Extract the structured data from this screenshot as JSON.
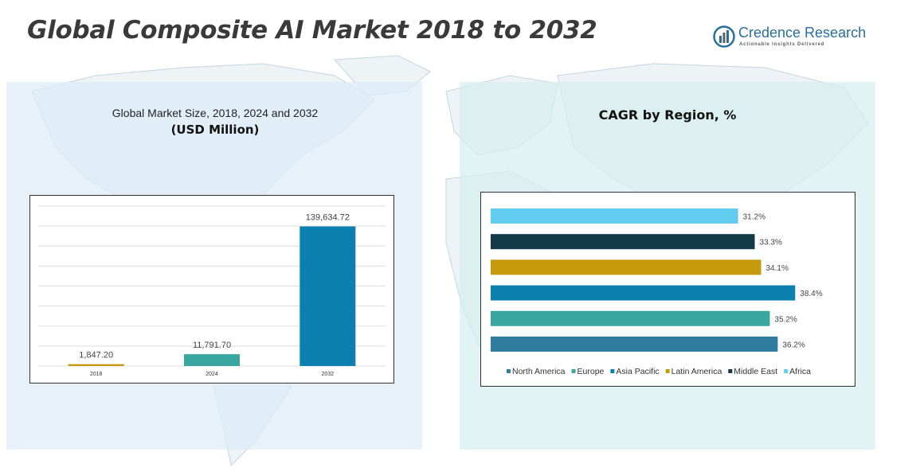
{
  "header": {
    "title": "Global Composite AI Market 2018 to 2032"
  },
  "brand": {
    "name": "Credence Research",
    "tagline": "Actionable Insights Delivered"
  },
  "colors": {
    "north_america": "#2e7d9e",
    "europe": "#3aa6a0",
    "asia_pacific": "#0a7fb0",
    "latin_america": "#c49a0a",
    "middle_east": "#143a4a",
    "africa": "#62cdf1"
  },
  "chart_data": [
    {
      "type": "bar",
      "subtitle": "Global Market Size, 2018, 2024 and 2032",
      "unit": "(USD Million)",
      "categories": [
        "2018",
        "2024",
        "2032"
      ],
      "values": [
        1847.2,
        11791.7,
        139634.72
      ],
      "value_labels": [
        "1,847.20",
        "11,791.70",
        "139,634.72"
      ],
      "colors": [
        "#c49a0a",
        "#3aa6a0",
        "#0a7fb0"
      ],
      "ylim": [
        0,
        160000
      ],
      "grid": true,
      "legend": "none"
    },
    {
      "type": "bar",
      "orientation": "horizontal",
      "title": "CAGR by Region, %",
      "categories": [
        "Africa",
        "Middle East",
        "Latin America",
        "Asia Pacific",
        "Europe",
        "North America"
      ],
      "values": [
        31.2,
        33.3,
        34.1,
        38.4,
        35.2,
        36.2
      ],
      "value_labels": [
        "31.2%",
        "33.3%",
        "34.1%",
        "38.4%",
        "35.2%",
        "36.2%"
      ],
      "colors": [
        "#62cdf1",
        "#143a4a",
        "#c49a0a",
        "#0a7fb0",
        "#3aa6a0",
        "#2e7d9e"
      ],
      "xlim": [
        0,
        45
      ],
      "grid": false,
      "legend": "bottom",
      "legend_entries": [
        "North America",
        "Europe",
        "Asia Pacific",
        "Latin America",
        "Middle East",
        "Africa"
      ]
    }
  ]
}
